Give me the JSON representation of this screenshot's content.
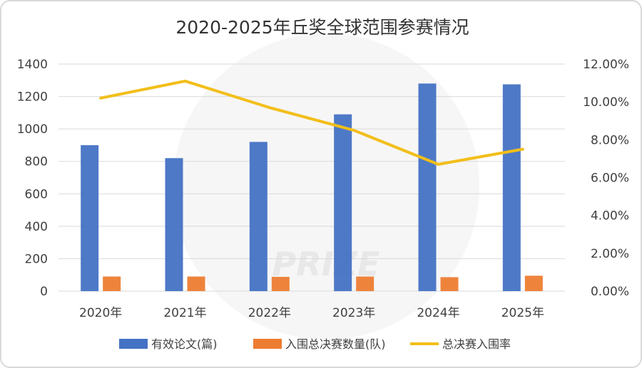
{
  "chart_data": {
    "type": "bar",
    "title": "2020-2025年丘奖全球范围参赛情况",
    "categories": [
      "2020年",
      "2021年",
      "2022年",
      "2023年",
      "2024年",
      "2025年"
    ],
    "left_axis": {
      "min": 0,
      "max": 1400,
      "step": 200,
      "ticks": [
        "0",
        "200",
        "400",
        "600",
        "800",
        "1000",
        "1200",
        "1400"
      ]
    },
    "right_axis": {
      "min": 0,
      "max": 12,
      "step": 2,
      "ticks": [
        "0.00%",
        "2.00%",
        "4.00%",
        "6.00%",
        "8.00%",
        "10.00%",
        "12.00%"
      ]
    },
    "grid": true,
    "legend_position": "bottom",
    "series": [
      {
        "name": "有效论文(篇)",
        "type": "bar",
        "axis": "left",
        "color": "#4472C4",
        "values": [
          900,
          820,
          920,
          1090,
          1280,
          1275
        ]
      },
      {
        "name": "入围总决赛数量(队)",
        "type": "bar",
        "axis": "left",
        "color": "#ED7D31",
        "values": [
          90,
          90,
          88,
          90,
          86,
          95
        ]
      },
      {
        "name": "总决赛入围率",
        "type": "line",
        "axis": "right",
        "color": "#F2BE1A",
        "values": [
          10.2,
          11.1,
          9.7,
          8.5,
          6.7,
          7.5
        ]
      }
    ]
  },
  "watermark": {
    "text": "PRIZE",
    "color": "#e8e8e8"
  }
}
